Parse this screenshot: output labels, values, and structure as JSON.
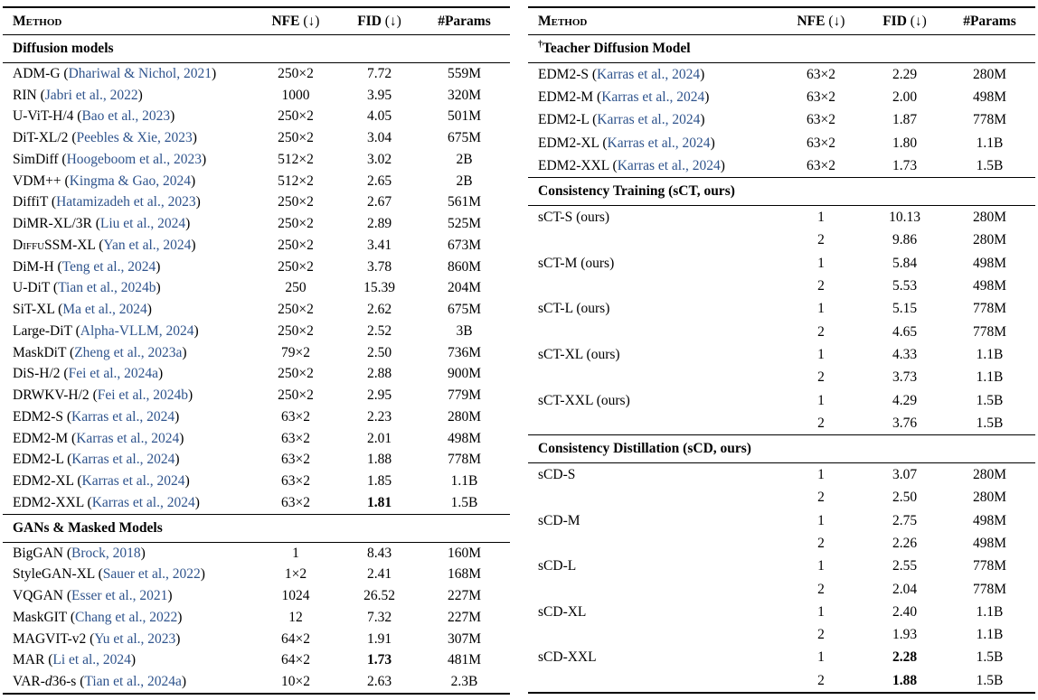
{
  "colors": {
    "citation": "#2e538c",
    "text": "#000000",
    "rule": "#000000",
    "background": "#ffffff"
  },
  "columns": {
    "method": "Method",
    "nfe": "NFE",
    "fid": "FID",
    "arrow": "(↓)",
    "params": "#Params"
  },
  "tables": [
    {
      "name": "left",
      "sections": [
        {
          "title": "Diffusion models",
          "prefix": "",
          "rows": [
            {
              "method": "ADM-G",
              "cite": "Dhariwal & Nichol, 2021",
              "nfe": "250×2",
              "fid": "7.72",
              "params": "559M"
            },
            {
              "method": "RIN",
              "cite": "Jabri et al., 2022",
              "nfe": "1000",
              "fid": "3.95",
              "params": "320M"
            },
            {
              "method": "U-ViT-H/4",
              "cite": "Bao et al., 2023",
              "nfe": "250×2",
              "fid": "4.05",
              "params": "501M"
            },
            {
              "method": "DiT-XL/2",
              "cite": "Peebles & Xie, 2023",
              "nfe": "250×2",
              "fid": "3.04",
              "params": "675M"
            },
            {
              "method": "SimDiff",
              "cite": "Hoogeboom et al., 2023",
              "nfe": "512×2",
              "fid": "3.02",
              "params": "2B"
            },
            {
              "method": "VDM++",
              "cite": "Kingma & Gao, 2024",
              "nfe": "512×2",
              "fid": "2.65",
              "params": "2B"
            },
            {
              "method": "DiffiT",
              "cite": "Hatamizadeh et al., 2023",
              "nfe": "250×2",
              "fid": "2.67",
              "params": "561M"
            },
            {
              "method": "DiMR-XL/3R",
              "cite": "Liu et al., 2024",
              "nfe": "250×2",
              "fid": "2.89",
              "params": "525M"
            },
            {
              "method": "DiffuSSM-XL",
              "method_segments": [
                [
                  "D",
                  ""
                ],
                [
                  "iffu",
                  "sc"
                ],
                [
                  "SSM-XL",
                  ""
                ]
              ],
              "cite": "Yan et al., 2024",
              "nfe": "250×2",
              "fid": "3.41",
              "params": "673M"
            },
            {
              "method": "DiM-H",
              "cite": "Teng et al., 2024",
              "nfe": "250×2",
              "fid": "3.78",
              "params": "860M"
            },
            {
              "method": "U-DiT",
              "cite": "Tian et al., 2024b",
              "nfe": "250",
              "fid": "15.39",
              "params": "204M"
            },
            {
              "method": "SiT-XL",
              "cite": "Ma et al., 2024",
              "nfe": "250×2",
              "fid": "2.62",
              "params": "675M"
            },
            {
              "method": "Large-DiT",
              "cite": "Alpha-VLLM, 2024",
              "nfe": "250×2",
              "fid": "2.52",
              "params": "3B"
            },
            {
              "method": "MaskDiT",
              "cite": "Zheng et al., 2023a",
              "nfe": "79×2",
              "fid": "2.50",
              "params": "736M"
            },
            {
              "method": "DiS-H/2",
              "cite": "Fei et al., 2024a",
              "nfe": "250×2",
              "fid": "2.88",
              "params": "900M"
            },
            {
              "method": "DRWKV-H/2",
              "cite": "Fei et al., 2024b",
              "nfe": "250×2",
              "fid": "2.95",
              "params": "779M"
            },
            {
              "method": "EDM2-S",
              "cite": "Karras et al., 2024",
              "nfe": "63×2",
              "fid": "2.23",
              "params": "280M"
            },
            {
              "method": "EDM2-M",
              "cite": "Karras et al., 2024",
              "nfe": "63×2",
              "fid": "2.01",
              "params": "498M"
            },
            {
              "method": "EDM2-L",
              "cite": "Karras et al., 2024",
              "nfe": "63×2",
              "fid": "1.88",
              "params": "778M"
            },
            {
              "method": "EDM2-XL",
              "cite": "Karras et al., 2024",
              "nfe": "63×2",
              "fid": "1.85",
              "params": "1.1B"
            },
            {
              "method": "EDM2-XXL",
              "cite": "Karras et al., 2024",
              "nfe": "63×2",
              "fid": "1.81",
              "fid_bold": true,
              "params": "1.5B"
            }
          ]
        },
        {
          "title": "GANs & Masked Models",
          "prefix": "",
          "rows": [
            {
              "method": "BigGAN",
              "cite": "Brock, 2018",
              "nfe": "1",
              "fid": "8.43",
              "params": "160M"
            },
            {
              "method": "StyleGAN-XL",
              "cite": "Sauer et al., 2022",
              "nfe": "1×2",
              "fid": "2.41",
              "params": "168M"
            },
            {
              "method": "VQGAN",
              "cite": "Esser et al., 2021",
              "nfe": "1024",
              "fid": "26.52",
              "params": "227M"
            },
            {
              "method": "MaskGIT",
              "cite": "Chang et al., 2022",
              "nfe": "12",
              "fid": "7.32",
              "params": "227M"
            },
            {
              "method": "MAGVIT-v2",
              "cite": "Yu et al., 2023",
              "nfe": "64×2",
              "fid": "1.91",
              "params": "307M"
            },
            {
              "method": "MAR",
              "cite": "Li et al., 2024",
              "nfe": "64×2",
              "fid": "1.73",
              "fid_bold": true,
              "params": "481M"
            },
            {
              "method": "VAR-d36-s",
              "method_segments": [
                [
                  "VAR-",
                  ""
                ],
                [
                  "d",
                  "i"
                ],
                [
                  "36-s",
                  ""
                ]
              ],
              "cite": "Tian et al., 2024a",
              "nfe": "10×2",
              "fid": "2.63",
              "params": "2.3B"
            }
          ]
        }
      ]
    },
    {
      "name": "right",
      "sections": [
        {
          "title": "Teacher Diffusion Model",
          "prefix": "†",
          "rows": [
            {
              "method": "EDM2-S",
              "cite": "Karras et al., 2024",
              "nfe": "63×2",
              "fid": "2.29",
              "params": "280M"
            },
            {
              "method": "EDM2-M",
              "cite": "Karras et al., 2024",
              "nfe": "63×2",
              "fid": "2.00",
              "params": "498M"
            },
            {
              "method": "EDM2-L",
              "cite": "Karras et al., 2024",
              "nfe": "63×2",
              "fid": "1.87",
              "params": "778M"
            },
            {
              "method": "EDM2-XL",
              "cite": "Karras et al., 2024",
              "nfe": "63×2",
              "fid": "1.80",
              "params": "1.1B"
            },
            {
              "method": "EDM2-XXL",
              "cite": "Karras et al., 2024",
              "nfe": "63×2",
              "fid": "1.73",
              "params": "1.5B"
            }
          ]
        },
        {
          "title": "Consistency Training (sCT, ours)",
          "prefix": "",
          "rows": [
            {
              "method": "sCT-S (ours)",
              "cite": null,
              "nfe": "1",
              "fid": "10.13",
              "params": "280M"
            },
            {
              "method": "",
              "cite": null,
              "nfe": "2",
              "fid": "9.86",
              "params": "280M"
            },
            {
              "method": "sCT-M (ours)",
              "cite": null,
              "nfe": "1",
              "fid": "5.84",
              "params": "498M"
            },
            {
              "method": "",
              "cite": null,
              "nfe": "2",
              "fid": "5.53",
              "params": "498M"
            },
            {
              "method": "sCT-L (ours)",
              "cite": null,
              "nfe": "1",
              "fid": "5.15",
              "params": "778M"
            },
            {
              "method": "",
              "cite": null,
              "nfe": "2",
              "fid": "4.65",
              "params": "778M"
            },
            {
              "method": "sCT-XL (ours)",
              "cite": null,
              "nfe": "1",
              "fid": "4.33",
              "params": "1.1B"
            },
            {
              "method": "",
              "cite": null,
              "nfe": "2",
              "fid": "3.73",
              "params": "1.1B"
            },
            {
              "method": "sCT-XXL (ours)",
              "cite": null,
              "nfe": "1",
              "fid": "4.29",
              "params": "1.5B"
            },
            {
              "method": "",
              "cite": null,
              "nfe": "2",
              "fid": "3.76",
              "params": "1.5B"
            }
          ]
        },
        {
          "title": "Consistency Distillation (sCD, ours)",
          "prefix": "",
          "rows": [
            {
              "method": "sCD-S",
              "cite": null,
              "nfe": "1",
              "fid": "3.07",
              "params": "280M"
            },
            {
              "method": "",
              "cite": null,
              "nfe": "2",
              "fid": "2.50",
              "params": "280M"
            },
            {
              "method": "sCD-M",
              "cite": null,
              "nfe": "1",
              "fid": "2.75",
              "params": "498M"
            },
            {
              "method": "",
              "cite": null,
              "nfe": "2",
              "fid": "2.26",
              "params": "498M"
            },
            {
              "method": "sCD-L",
              "cite": null,
              "nfe": "1",
              "fid": "2.55",
              "params": "778M"
            },
            {
              "method": "",
              "cite": null,
              "nfe": "2",
              "fid": "2.04",
              "params": "778M"
            },
            {
              "method": "sCD-XL",
              "cite": null,
              "nfe": "1",
              "fid": "2.40",
              "params": "1.1B"
            },
            {
              "method": "",
              "cite": null,
              "nfe": "2",
              "fid": "1.93",
              "params": "1.1B"
            },
            {
              "method": "sCD-XXL",
              "cite": null,
              "nfe": "1",
              "fid": "2.28",
              "fid_bold": true,
              "params": "1.5B"
            },
            {
              "method": "",
              "cite": null,
              "nfe": "2",
              "fid": "1.88",
              "fid_bold": true,
              "params": "1.5B"
            }
          ]
        }
      ]
    }
  ]
}
